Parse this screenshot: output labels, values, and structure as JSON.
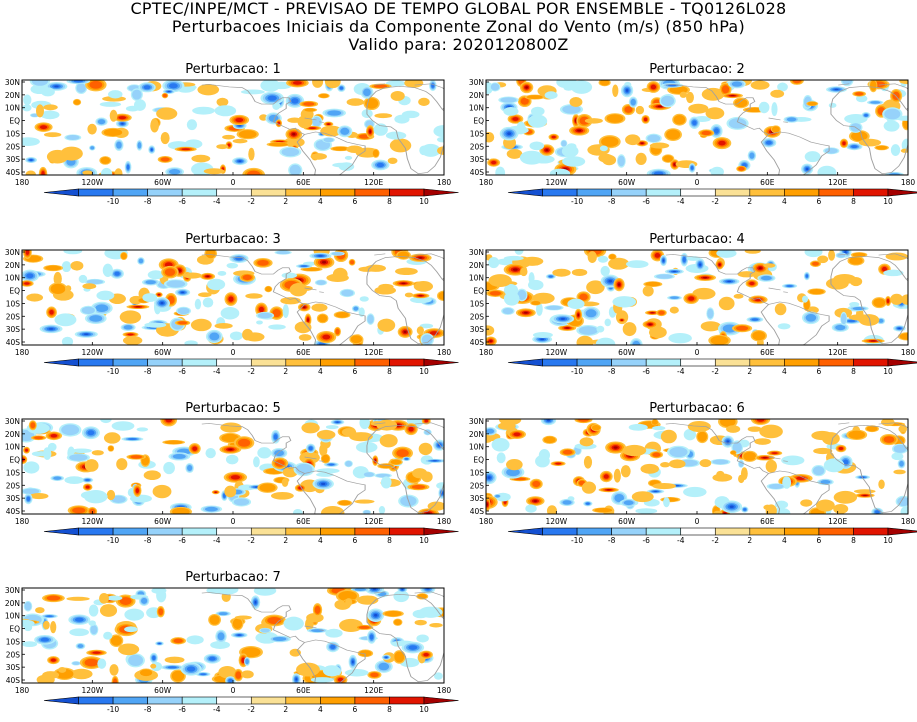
{
  "header": {
    "line1": "CPTEC/INPE/MCT - PREVISAO DE TEMPO GLOBAL POR ENSEMBLE - TQ0126L028",
    "line2": "Perturbacoes Iniciais da Componente Zonal do Vento (m/s) (850 hPa)",
    "line3": "Valido para: 2020120800Z"
  },
  "panels": [
    {
      "title": "Perturbacao: 1"
    },
    {
      "title": "Perturbacao: 2"
    },
    {
      "title": "Perturbacao: 3"
    },
    {
      "title": "Perturbacao: 4"
    },
    {
      "title": "Perturbacao: 5"
    },
    {
      "title": "Perturbacao: 6"
    },
    {
      "title": "Perturbacao: 7"
    }
  ],
  "map_axes": {
    "lat_labels": [
      "30N",
      "20N",
      "10N",
      "EQ",
      "10S",
      "20S",
      "30S",
      "40S"
    ],
    "lon_labels": [
      "180",
      "120W",
      "60W",
      "0",
      "60E",
      "120E",
      "180"
    ],
    "lon_values": [
      -180,
      -120,
      -60,
      0,
      60,
      120,
      180
    ],
    "lat_range": [
      -45,
      30
    ],
    "lon_range": [
      -180,
      180
    ]
  },
  "colorbar": {
    "labels": [
      "-10",
      "-8",
      "-6",
      "-4",
      "-2",
      "2",
      "4",
      "6",
      "8",
      "10"
    ],
    "colors": [
      "#1450d2",
      "#2878f0",
      "#50a5f5",
      "#96d2fa",
      "#b4f0fa",
      "#ffffff",
      "#fae196",
      "#ffc03c",
      "#ff9f00",
      "#ff6000",
      "#e11400",
      "#a50000"
    ]
  },
  "palette": {
    "coast": "#a0a0a0",
    "frame": "#000000"
  }
}
